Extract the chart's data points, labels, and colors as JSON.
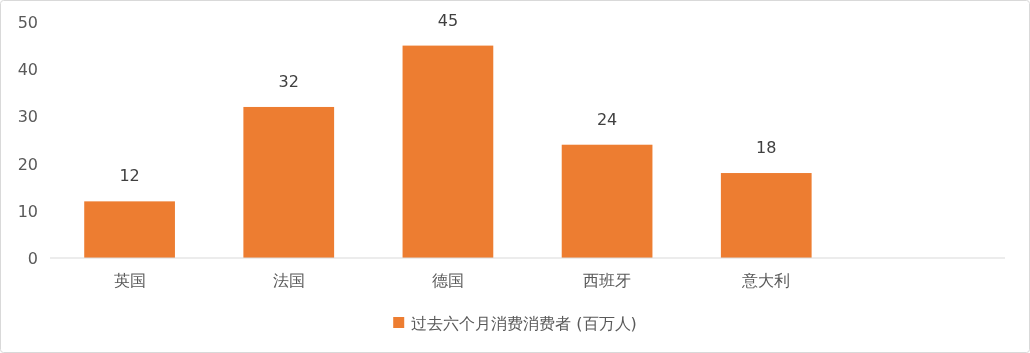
{
  "chart_data": {
    "type": "bar",
    "categories": [
      "英国",
      "法国",
      "德国",
      "西班牙",
      "意大利",
      null
    ],
    "series": [
      {
        "name": "过去六个月消费消费者 (百万人)",
        "color": "#ed7d31",
        "values": [
          12,
          32,
          45,
          24,
          18,
          null
        ]
      }
    ],
    "ylim": [
      0,
      50
    ],
    "yticks": [
      0,
      10,
      20,
      30,
      40,
      50
    ],
    "data_labels": true,
    "grid": false,
    "legend": "bottom"
  }
}
